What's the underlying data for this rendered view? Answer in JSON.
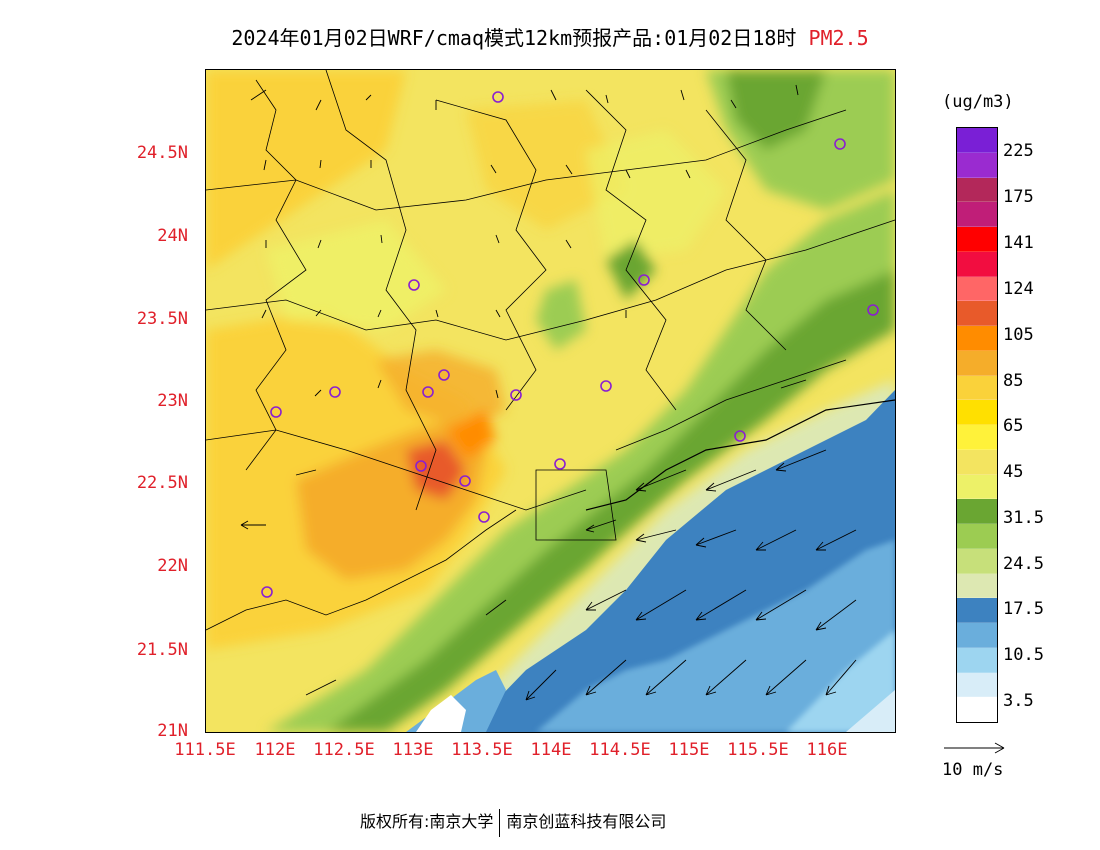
{
  "title": {
    "main": "2024年01月02日WRF/cmaq模式12km预报产品:01月02日18时",
    "variable": "PM2.5"
  },
  "axes": {
    "lat_labels": [
      "24.5N",
      "24N",
      "23.5N",
      "23N",
      "22.5N",
      "22N",
      "21.5N",
      "21N"
    ],
    "lon_labels": [
      "111.5E",
      "112E",
      "112.5E",
      "113E",
      "113.5E",
      "114E",
      "114.5E",
      "115E",
      "115.5E",
      "116E"
    ]
  },
  "legend": {
    "unit": "(ug/m3)",
    "labels": [
      "225",
      "175",
      "141",
      "124",
      "105",
      "85",
      "65",
      "45",
      "31.5",
      "24.5",
      "17.5",
      "10.5",
      "3.5"
    ],
    "colors": [
      "#7a1fd6",
      "#9a2bd0",
      "#b3285a",
      "#c01e78",
      "#ff0000",
      "#f20d40",
      "#ff6666",
      "#e85a2a",
      "#ff8c00",
      "#f5ad2a",
      "#fad23a",
      "#ffe000",
      "#fff23a",
      "#f3e460",
      "#edf168",
      "#6aa632",
      "#9ccc52",
      "#c7e07a",
      "#dde8b2",
      "#3d82c0",
      "#6aaedc",
      "#9dd5f0",
      "#d8edf8",
      "#ffffff"
    ]
  },
  "wind_reference": {
    "label": "10 m/s"
  },
  "footer": {
    "copyright": "版权所有:南京大学",
    "org": "南京创蓝科技有限公司"
  },
  "colors": {
    "axis_label": "#e0202a",
    "ocean_deep": "#3d82c0",
    "ocean_mid": "#6aaedc",
    "land_yellow": "#fad23a",
    "hotspot_orange": "#f0a030",
    "green": "#6aa632"
  },
  "stations_marker": "purple-circle"
}
